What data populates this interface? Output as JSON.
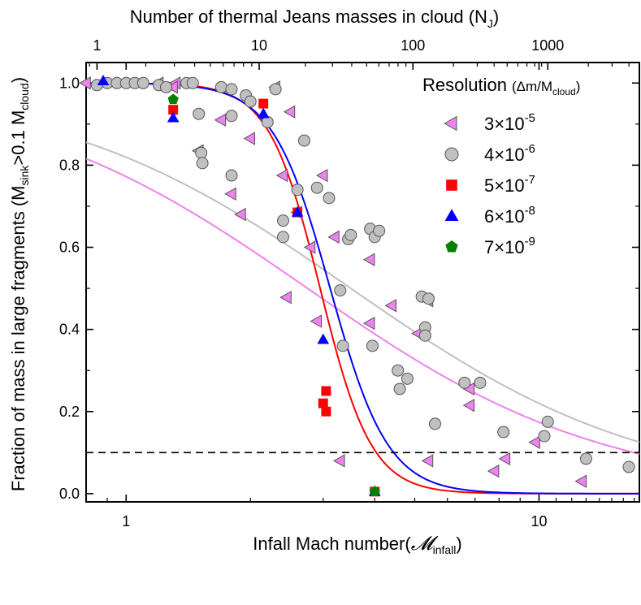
{
  "chart_data": {
    "type": "scatter",
    "x_label_parts": {
      "prefix": "Infall Mach number(",
      "symbol": "𝓜",
      "sub": "infall",
      "suffix": ")"
    },
    "top_label_parts": {
      "main": "Number of thermal Jeans masses in cloud (N",
      "sub": "J",
      "end": ")"
    },
    "y_label_parts": {
      "main": "Fraction of mass in large fragments (M",
      "sub1": "sink",
      "mid": ">0.1 M",
      "sub2": "cloud",
      "end": ")"
    },
    "x_scale": "log",
    "xlim": [
      0.8,
      17.5
    ],
    "ylim": [
      -0.02,
      1.05
    ],
    "x_ticks": [
      {
        "value": 1,
        "label": "1"
      },
      {
        "value": 10,
        "label": "10"
      }
    ],
    "top_ticks": [
      {
        "value": 0.85,
        "label": "1"
      },
      {
        "value": 2.1,
        "label": "10"
      },
      {
        "value": 4.95,
        "label": "100"
      },
      {
        "value": 10.5,
        "label": "1000"
      }
    ],
    "y_ticks": [
      {
        "value": 0.0,
        "label": "0.0"
      },
      {
        "value": 0.2,
        "label": "0.2"
      },
      {
        "value": 0.4,
        "label": "0.4"
      },
      {
        "value": 0.6,
        "label": "0.6"
      },
      {
        "value": 0.8,
        "label": "0.8"
      },
      {
        "value": 1.0,
        "label": "1.0"
      }
    ],
    "threshold": 0.1,
    "legend": {
      "title": "Resolution",
      "title_unit_parts": {
        "open": "(Δm/M",
        "sub": "cloud",
        "close": ")"
      },
      "placement": "top-right"
    },
    "series": [
      {
        "legend_label": {
          "base": "3×10",
          "exp": "-5"
        },
        "marker": "triangle-left",
        "color": "#ee82ee",
        "stroke": "#555555",
        "fit_color": "#ee82ee",
        "fit": {
          "x0": 2.75,
          "w": 0.36
        },
        "points": [
          [
            0.8,
            1.0
          ],
          [
            1.2,
            1.0
          ],
          [
            1.32,
            1.0
          ],
          [
            1.3,
            0.99
          ],
          [
            1.5,
            0.835
          ],
          [
            1.7,
            0.91
          ],
          [
            1.8,
            0.73
          ],
          [
            1.9,
            0.68
          ],
          [
            2.0,
            0.865
          ],
          [
            2.3,
            0.99
          ],
          [
            2.4,
            0.775
          ],
          [
            2.5,
            0.93
          ],
          [
            2.45,
            0.478
          ],
          [
            2.6,
            0.685
          ],
          [
            2.8,
            0.6
          ],
          [
            2.9,
            0.42
          ],
          [
            3.0,
            0.775
          ],
          [
            3.2,
            0.625
          ],
          [
            3.3,
            0.08
          ],
          [
            3.9,
            0.57
          ],
          [
            3.9,
            0.415
          ],
          [
            4.4,
            0.458
          ],
          [
            5.1,
            0.39
          ],
          [
            5.4,
            0.47
          ],
          [
            5.4,
            0.08
          ],
          [
            6.8,
            0.255
          ],
          [
            6.8,
            0.215
          ],
          [
            7.8,
            0.055
          ],
          [
            8.3,
            0.085
          ],
          [
            9.8,
            0.125
          ],
          [
            12.7,
            0.03
          ]
        ]
      },
      {
        "legend_label": {
          "base": "4×10",
          "exp": "-6"
        },
        "marker": "circle",
        "color": "#c0c0c0",
        "stroke": "#555555",
        "fit_color": "#c0c0c0",
        "fit": {
          "x0": 3.5,
          "w": 0.36
        },
        "points": [
          [
            0.85,
            0.995
          ],
          [
            0.9,
            1.0
          ],
          [
            0.95,
            1.0
          ],
          [
            1.0,
            1.0
          ],
          [
            1.05,
            1.0
          ],
          [
            1.1,
            1.0
          ],
          [
            1.2,
            0.995
          ],
          [
            1.25,
            0.99
          ],
          [
            1.4,
            1.0
          ],
          [
            1.45,
            1.0
          ],
          [
            1.5,
            0.925
          ],
          [
            1.52,
            0.83
          ],
          [
            1.53,
            0.805
          ],
          [
            1.7,
            0.99
          ],
          [
            1.8,
            0.985
          ],
          [
            1.8,
            0.92
          ],
          [
            1.8,
            0.775
          ],
          [
            1.95,
            0.97
          ],
          [
            2.0,
            0.955
          ],
          [
            2.2,
            0.905
          ],
          [
            2.3,
            0.985
          ],
          [
            2.4,
            0.665
          ],
          [
            2.4,
            0.625
          ],
          [
            2.6,
            0.74
          ],
          [
            2.7,
            0.86
          ],
          [
            2.9,
            0.745
          ],
          [
            3.1,
            0.72
          ],
          [
            3.3,
            0.495
          ],
          [
            3.35,
            0.36
          ],
          [
            3.45,
            0.62
          ],
          [
            3.5,
            0.63
          ],
          [
            3.9,
            0.645
          ],
          [
            4.0,
            0.625
          ],
          [
            4.1,
            0.64
          ],
          [
            3.95,
            0.36
          ],
          [
            4.6,
            0.255
          ],
          [
            4.8,
            0.28
          ],
          [
            4.55,
            0.3
          ],
          [
            5.2,
            0.48
          ],
          [
            5.4,
            0.475
          ],
          [
            5.3,
            0.405
          ],
          [
            5.3,
            0.385
          ],
          [
            5.6,
            0.17
          ],
          [
            6.6,
            0.27
          ],
          [
            7.2,
            0.27
          ],
          [
            8.2,
            0.15
          ],
          [
            10.3,
            0.14
          ],
          [
            10.5,
            0.175
          ],
          [
            13.0,
            0.085
          ],
          [
            16.5,
            0.065
          ]
        ]
      },
      {
        "legend_label": {
          "base": "5×10",
          "exp": "-7"
        },
        "marker": "square",
        "color": "#ff0000",
        "stroke": "#ff0000",
        "fit_color": "#ff0000",
        "fit": {
          "x0": 2.95,
          "w": 0.062
        },
        "points": [
          [
            1.3,
            0.935
          ],
          [
            2.15,
            0.95
          ],
          [
            2.6,
            0.685
          ],
          [
            3.05,
            0.25
          ],
          [
            3.0,
            0.22
          ],
          [
            3.05,
            0.2
          ],
          [
            4.0,
            0.005
          ]
        ]
      },
      {
        "legend_label": {
          "base": "6×10",
          "exp": "-8"
        },
        "marker": "triangle-up",
        "color": "#0000ff",
        "stroke": "#0000ff",
        "fit_color": "#0000ff",
        "fit": {
          "x0": 3.12,
          "w": 0.07
        },
        "points": [
          [
            0.88,
            1.005
          ],
          [
            1.3,
            0.915
          ],
          [
            2.15,
            0.925
          ],
          [
            2.6,
            0.685
          ],
          [
            3.0,
            0.375
          ],
          [
            4.0,
            0.005
          ]
        ]
      },
      {
        "legend_label": {
          "base": "7×10",
          "exp": "-9"
        },
        "marker": "pentagon",
        "color": "#008000",
        "stroke": "#008000",
        "points": [
          [
            1.3,
            0.96
          ],
          [
            4.0,
            0.005
          ]
        ]
      }
    ]
  }
}
